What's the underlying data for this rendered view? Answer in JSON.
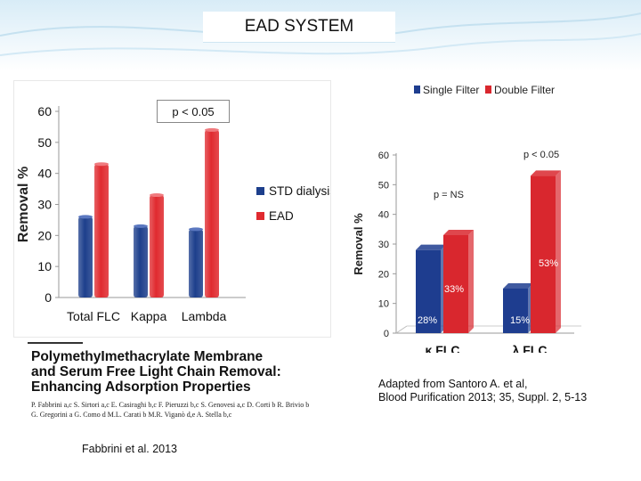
{
  "slide": {
    "title": "EAD SYSTEM"
  },
  "colors": {
    "blue": "#1e3d8f",
    "red": "#d9272e",
    "left_blue": "#1d3f8c",
    "left_red": "#e02a2f",
    "bg_top": "#e6f2fa"
  },
  "left_chart_annotation": "p < 0.05",
  "right_legend_labels": [
    "Single Filter",
    "Double Filter"
  ],
  "chart_data": [
    {
      "type": "bar",
      "ylabel": "Removal %",
      "ylim": [
        0,
        60
      ],
      "yticks": [
        "0",
        "10",
        "20",
        "30",
        "40",
        "50",
        "60"
      ],
      "categories": [
        "Total FLC",
        "Kappa",
        "Lambda"
      ],
      "legend": "right",
      "series": [
        {
          "name": "STD dialysis",
          "values": [
            26,
            23,
            22
          ]
        },
        {
          "name": "EAD",
          "values": [
            43,
            33,
            54
          ]
        }
      ]
    },
    {
      "type": "bar",
      "ylabel": "Removal %",
      "ylim": [
        0,
        60
      ],
      "yticks": [
        "0",
        "10",
        "20",
        "30",
        "40",
        "50",
        "60"
      ],
      "categories": [
        "κ FLC",
        "λ FLC"
      ],
      "legend": "top",
      "series": [
        {
          "name": "Single Filter",
          "values": [
            28,
            15
          ],
          "labels": [
            "28%",
            "15%"
          ]
        },
        {
          "name": "Double Filter",
          "values": [
            33,
            53
          ],
          "labels": [
            "33%",
            "53%"
          ]
        }
      ],
      "annotations": [
        "p = NS",
        "p < 0.05"
      ]
    }
  ],
  "paper": {
    "title_line1": "PolymethyImethacrylate Membrane",
    "title_line2": "and Serum Free Light Chain Removal:",
    "title_line3": "Enhancing Adsorption Properties",
    "authors": "P. Fabbrini a,c  S. Sirtori a,c  E. Casiraghi b,c  F. Pieruzzi b,c  S. Genovesi a,c  D. Corti b  R. Brivio b  G. Gregorini a  G. Como d  M.L. Carati b  M.R. Viganò d,e  A. Stella b,c"
  },
  "credits": {
    "left": "Fabbrini et al. 2013",
    "right_line1": "Adapted from Santoro A. et al,",
    "right_line2": "Blood Purification 2013; 35, Suppl. 2, 5-13"
  }
}
